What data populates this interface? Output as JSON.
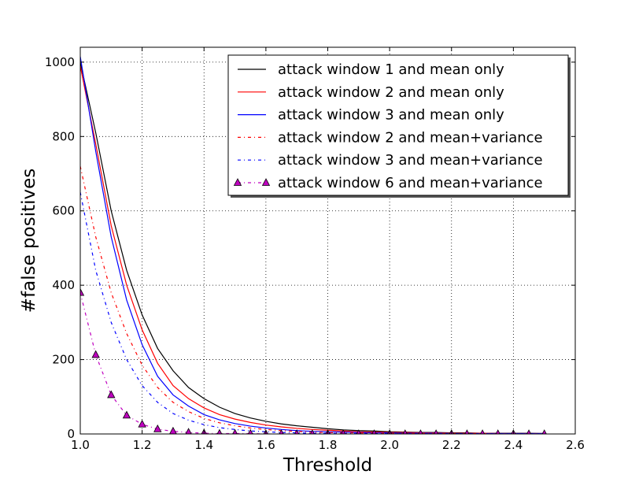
{
  "chart_data": {
    "type": "line",
    "title": "",
    "xlabel": "Threshold",
    "ylabel": "#false positives",
    "xlim": [
      1.0,
      2.6
    ],
    "ylim": [
      0,
      1040
    ],
    "xticks": [
      "1.0",
      "1.2",
      "1.4",
      "1.6",
      "1.8",
      "2.0",
      "2.2",
      "2.4",
      "2.6"
    ],
    "yticks": [
      "0",
      "200",
      "400",
      "600",
      "800",
      "1000"
    ],
    "grid": true,
    "legend_position": "top-right",
    "x": [
      1.0,
      1.05,
      1.1,
      1.15,
      1.2,
      1.25,
      1.3,
      1.35,
      1.4,
      1.45,
      1.5,
      1.55,
      1.6,
      1.65,
      1.7,
      1.75,
      1.8,
      1.85,
      1.9,
      1.95,
      2.0,
      2.05,
      2.1,
      2.15,
      2.2,
      2.25,
      2.3,
      2.35,
      2.4,
      2.45,
      2.5
    ],
    "series": [
      {
        "name": "attack window 1 and mean only",
        "color": "#000000",
        "style": "solid",
        "marker": "",
        "values": [
          1000,
          810,
          600,
          440,
          320,
          230,
          170,
          125,
          95,
          72,
          55,
          43,
          34,
          27,
          22,
          18,
          14,
          11,
          9,
          8,
          6,
          5,
          4,
          4,
          3,
          3,
          2,
          2,
          2,
          2,
          1
        ]
      },
      {
        "name": "attack window 2 and mean only",
        "color": "#ff0000",
        "style": "solid",
        "marker": "",
        "values": [
          990,
          780,
          560,
          400,
          280,
          190,
          130,
          95,
          70,
          52,
          40,
          31,
          24,
          19,
          15,
          12,
          10,
          8,
          6,
          5,
          4,
          4,
          3,
          3,
          2,
          2,
          2,
          1,
          1,
          1,
          1
        ]
      },
      {
        "name": "attack window 3 and mean only",
        "color": "#0000ff",
        "style": "solid",
        "marker": "",
        "values": [
          1015,
          760,
          530,
          360,
          240,
          155,
          105,
          75,
          52,
          38,
          28,
          21,
          16,
          12,
          9,
          7,
          6,
          5,
          4,
          3,
          3,
          2,
          2,
          2,
          1,
          1,
          1,
          1,
          1,
          1,
          1
        ]
      },
      {
        "name": "attack window 2 and mean+variance",
        "color": "#ff0000",
        "style": "dashdot",
        "marker": "",
        "values": [
          720,
          530,
          380,
          270,
          185,
          125,
          85,
          60,
          42,
          30,
          22,
          16,
          12,
          9,
          7,
          5,
          4,
          3,
          3,
          2,
          2,
          1,
          1,
          1,
          1,
          1,
          1,
          0,
          0,
          0,
          0
        ]
      },
      {
        "name": "attack window 3 and mean+variance",
        "color": "#0000ff",
        "style": "dashdot",
        "marker": "",
        "values": [
          650,
          440,
          300,
          200,
          130,
          85,
          55,
          37,
          25,
          17,
          12,
          8,
          6,
          4,
          3,
          2,
          2,
          1,
          1,
          1,
          1,
          0,
          0,
          0,
          0,
          0,
          0,
          0,
          0,
          0,
          0
        ]
      },
      {
        "name": "attack window 6 and mean+variance",
        "color": "#bf00bf",
        "style": "dashdot",
        "marker": "triangle",
        "values": [
          380,
          213,
          105,
          50,
          26,
          13,
          7,
          4,
          2,
          1,
          1,
          1,
          0,
          0,
          0,
          0,
          0,
          0,
          0,
          0,
          0,
          0,
          0,
          0,
          0,
          0,
          0,
          0,
          0,
          0,
          0
        ]
      }
    ]
  }
}
